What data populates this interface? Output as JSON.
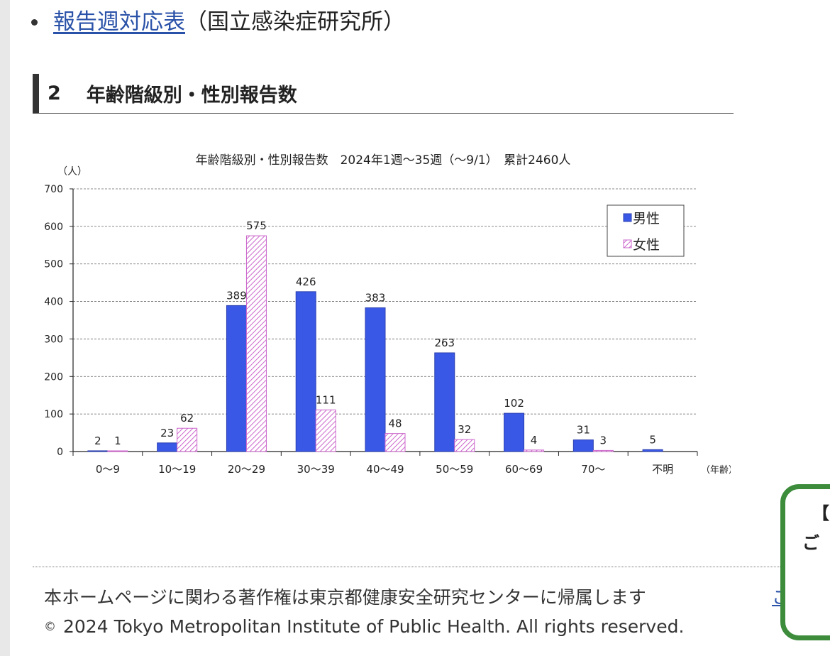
{
  "link_item": {
    "link_text": "報告週対応表",
    "note": "（国立感染症研究所）"
  },
  "section": {
    "number": "2",
    "title": "年齢階級別・性別報告数"
  },
  "chart_data": {
    "type": "bar",
    "title": "年齢階級別・性別報告数　2024年1週～35週（～9/1）　累計2460人",
    "xlabel": "（年齢）",
    "ylabel": "（人）",
    "ylim": [
      0,
      700
    ],
    "yticks": [
      0,
      100,
      200,
      300,
      400,
      500,
      600,
      700
    ],
    "grid": true,
    "legend_position": "top-right",
    "categories": [
      "0～9",
      "10～19",
      "20～29",
      "30～39",
      "40～49",
      "50～59",
      "60～69",
      "70～",
      "不明"
    ],
    "series": [
      {
        "name": "男性",
        "color": "#3a58e6",
        "pattern": "solid",
        "values": [
          2,
          23,
          389,
          426,
          383,
          263,
          102,
          31,
          5
        ]
      },
      {
        "name": "女性",
        "color": "#cc66cc",
        "pattern": "hatch",
        "values": [
          1,
          62,
          575,
          111,
          48,
          32,
          4,
          3,
          null
        ]
      }
    ]
  },
  "footer": {
    "notice": "本ホームページに関わる著作権は東京都健康安全研究センターに帰属します",
    "notice_link": "こ",
    "copyright_symbol": "©",
    "copyright": "2024 Tokyo Metropolitan Institute of Public Health. All rights reserved."
  },
  "popup": {
    "line1": "【",
    "line2": "ご"
  }
}
